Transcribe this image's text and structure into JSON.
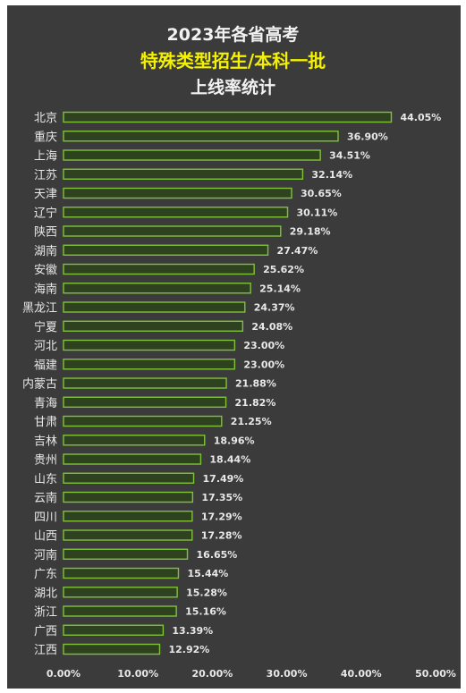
{
  "title_lines": [
    "2023年各省高考",
    "特殊类型招生/本科一批",
    "上线率统计"
  ],
  "colors": {
    "panel_bg": "#3b3b3b",
    "bar_fill": "#2f4220",
    "bar_stroke": "#7fc23a",
    "text": "#e8e8e8",
    "title_highlight": "#f3f000"
  },
  "chart_data": {
    "type": "bar",
    "orientation": "horizontal",
    "title": "2023年各省高考 特殊类型招生/本科一批 上线率统计",
    "categories": [
      "北京",
      "重庆",
      "上海",
      "江苏",
      "天津",
      "辽宁",
      "陕西",
      "湖南",
      "安徽",
      "海南",
      "黑龙江",
      "宁夏",
      "河北",
      "福建",
      "内蒙古",
      "青海",
      "甘肃",
      "吉林",
      "贵州",
      "山东",
      "云南",
      "四川",
      "山西",
      "河南",
      "广东",
      "湖北",
      "浙江",
      "广西",
      "江西"
    ],
    "values": [
      44.05,
      36.9,
      34.51,
      32.14,
      30.65,
      30.11,
      29.18,
      27.47,
      25.62,
      25.14,
      24.37,
      24.08,
      23.0,
      23.0,
      21.88,
      21.82,
      21.25,
      18.96,
      18.44,
      17.49,
      17.35,
      17.29,
      17.28,
      16.65,
      15.44,
      15.28,
      15.16,
      13.39,
      12.92
    ],
    "value_labels": [
      "44.05%",
      "36.90%",
      "34.51%",
      "32.14%",
      "30.65%",
      "30.11%",
      "29.18%",
      "27.47%",
      "25.62%",
      "25.14%",
      "24.37%",
      "24.08%",
      "23.00%",
      "23.00%",
      "21.88%",
      "21.82%",
      "21.25%",
      "18.96%",
      "18.44%",
      "17.49%",
      "17.35%",
      "17.29%",
      "17.28%",
      "16.65%",
      "15.44%",
      "15.28%",
      "15.16%",
      "13.39%",
      "12.92%"
    ],
    "xlim": [
      0,
      50
    ],
    "xticks": [
      0,
      10,
      20,
      30,
      40,
      50
    ],
    "xtick_labels": [
      "0.00%",
      "10.00%",
      "20.00%",
      "30.00%",
      "40.00%",
      "50.00%"
    ],
    "xlabel": "",
    "ylabel": "",
    "grid": false,
    "legend": "none"
  }
}
